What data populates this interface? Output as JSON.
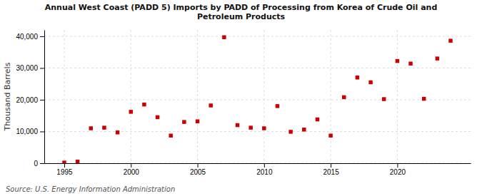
{
  "chart_data": {
    "type": "scatter",
    "title": "Annual West Coast (PADD 5) Imports by PADD of Processing from Korea of Crude Oil and\nPetroleum Products",
    "ylabel": "Thousand Barrels",
    "annotations": [
      "Source: U.S. Energy Information Administration"
    ],
    "x": [
      1995,
      1996,
      1997,
      1998,
      1999,
      2000,
      2001,
      2002,
      2003,
      2004,
      2005,
      2006,
      2007,
      2008,
      2009,
      2010,
      2011,
      2012,
      2013,
      2014,
      2015,
      2016,
      2017,
      2018,
      2019,
      2020,
      2021,
      2022,
      2023,
      2024
    ],
    "values": [
      200,
      500,
      11000,
      11200,
      9700,
      16200,
      18500,
      14500,
      8700,
      13000,
      13200,
      18200,
      39700,
      12000,
      11200,
      11000,
      18000,
      9900,
      10600,
      13800,
      8700,
      20800,
      27000,
      25500,
      20200,
      32200,
      31400,
      20300,
      33000,
      38600
    ],
    "color": "#cc0000",
    "marker": "square",
    "xlim": [
      1993.5,
      2025.5
    ],
    "ylim": [
      0,
      42000
    ],
    "xticks": [
      1995,
      2000,
      2005,
      2010,
      2015,
      2020
    ],
    "yticks": [
      0,
      {
        "value": 10000,
        "label": "10,000"
      },
      {
        "value": 20000,
        "label": "20,000"
      },
      {
        "value": 30000,
        "label": "30,000"
      },
      {
        "value": 40000,
        "label": "40,000"
      }
    ],
    "grid": true
  }
}
